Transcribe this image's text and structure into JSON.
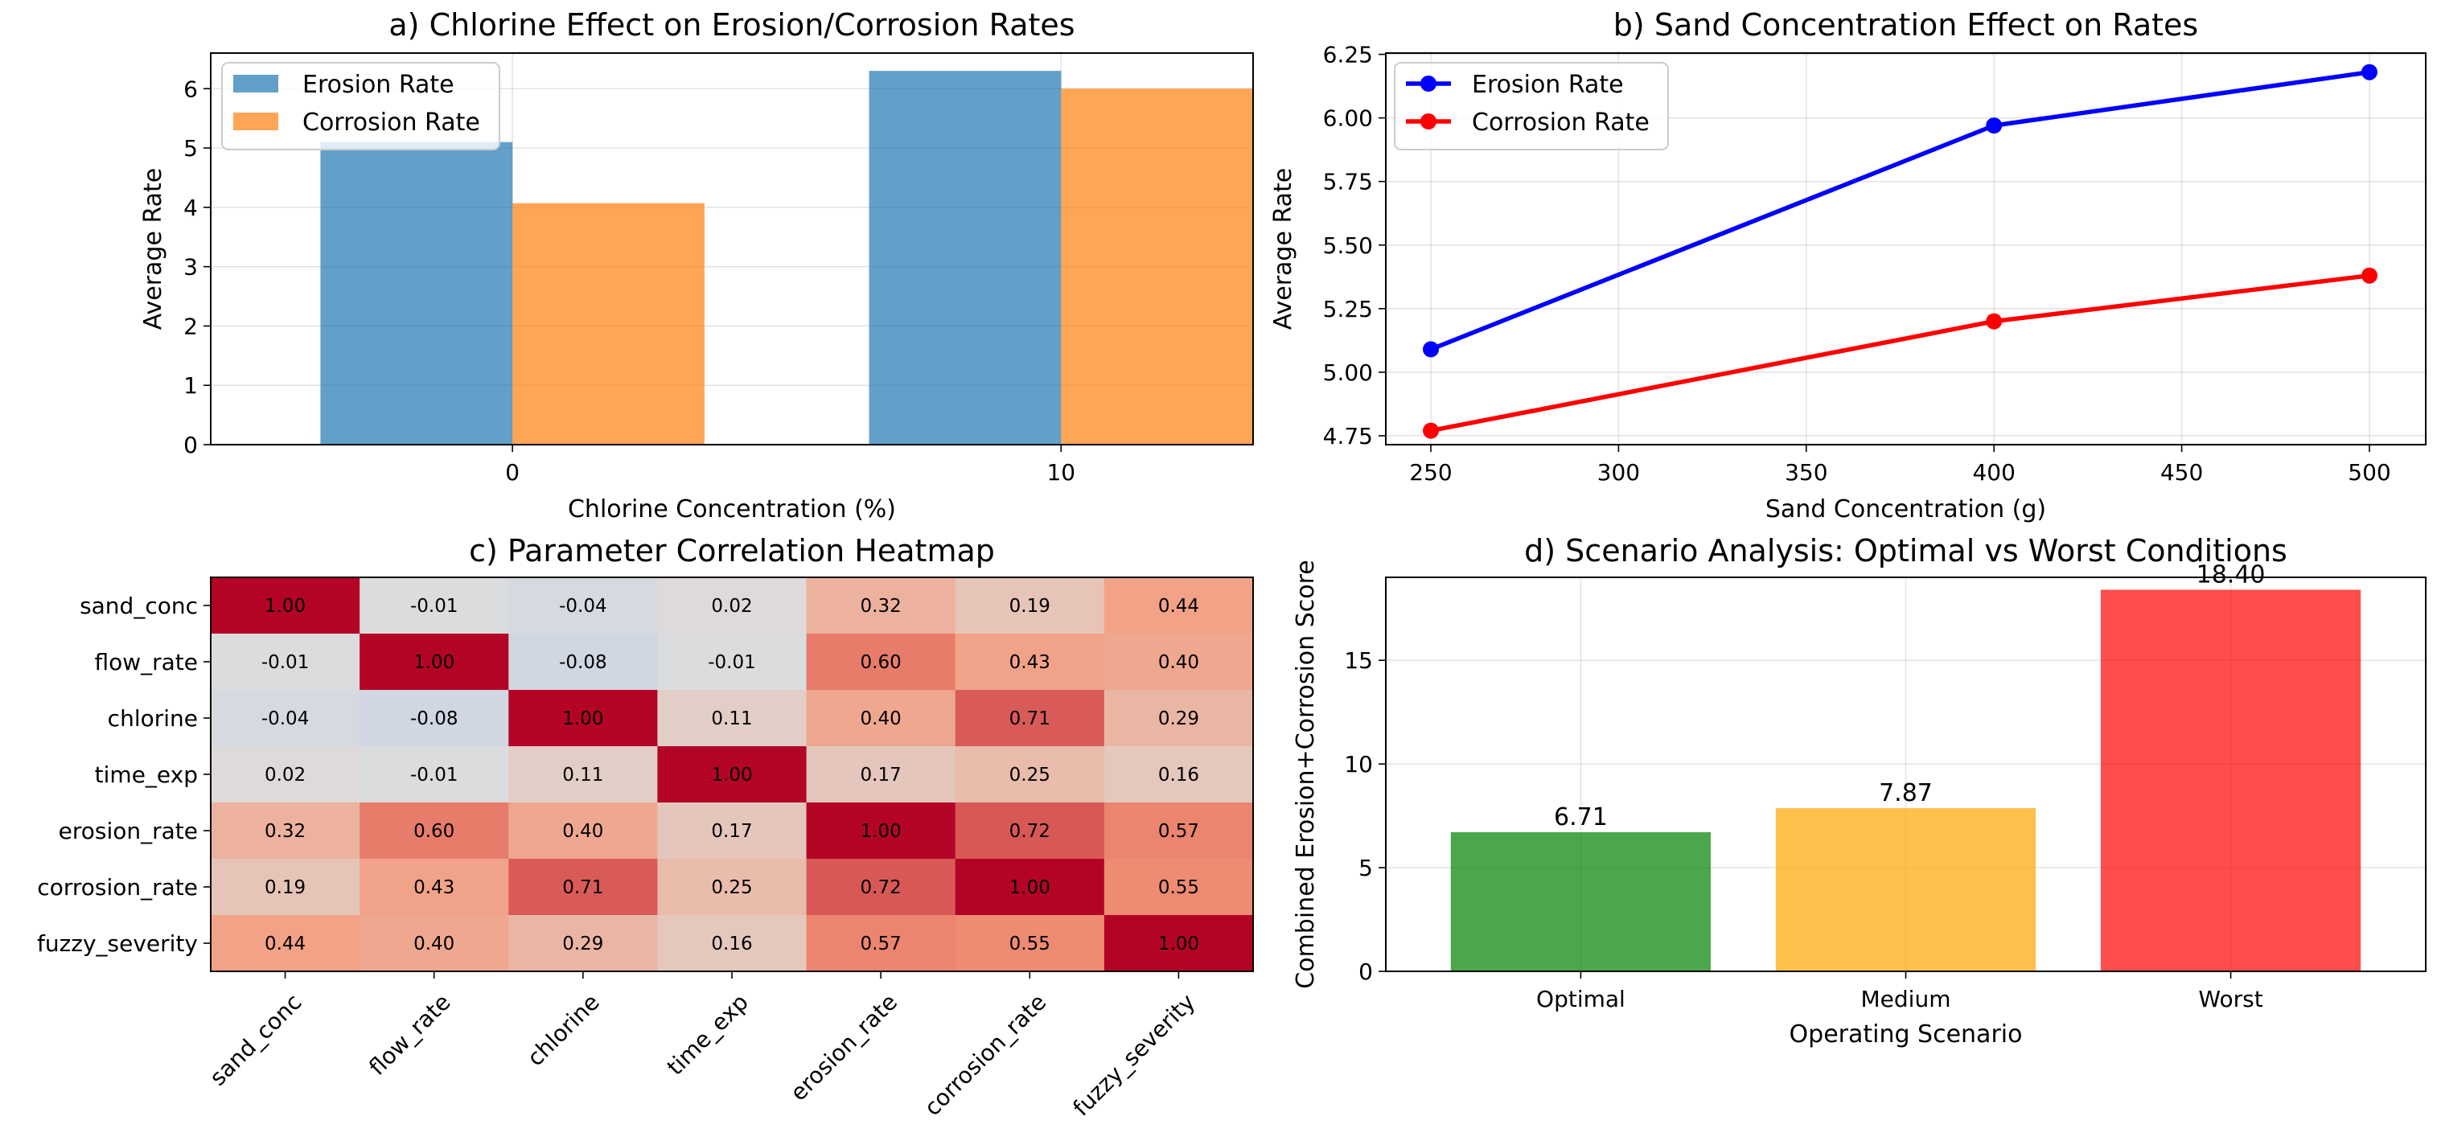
{
  "colors": {
    "erosion_bar": "#1f77b4",
    "corrosion_bar": "#ff7f0e",
    "erosion_line": "#0000ff",
    "corrosion_line": "#ff0000",
    "optimal": "#008000",
    "medium": "#ffa500",
    "worst": "#ff0000"
  },
  "chart_data": [
    {
      "panel": "a",
      "type": "bar",
      "title": "a) Chlorine Effect on Erosion/Corrosion Rates",
      "xlabel": "Chlorine Concentration (%)",
      "ylabel": "Average Rate",
      "categories": [
        "0",
        "10"
      ],
      "series": [
        {
          "name": "Erosion Rate",
          "values": [
            5.1,
            6.3
          ]
        },
        {
          "name": "Corrosion Rate",
          "values": [
            4.07,
            6.0
          ]
        }
      ],
      "ylim": [
        0,
        6.6
      ],
      "yticks": [
        0,
        1,
        2,
        3,
        4,
        5,
        6
      ],
      "grid": true,
      "legend": "top-left"
    },
    {
      "panel": "b",
      "type": "line",
      "title": "b) Sand Concentration Effect on Rates",
      "xlabel": "Sand Concentration (g)",
      "ylabel": "Average Rate",
      "x": [
        250,
        400,
        500
      ],
      "series": [
        {
          "name": "Erosion Rate",
          "values": [
            5.09,
            5.97,
            6.18
          ]
        },
        {
          "name": "Corrosion Rate",
          "values": [
            4.77,
            5.2,
            5.38
          ]
        }
      ],
      "xlim": [
        238,
        515
      ],
      "ylim": [
        4.715,
        6.255
      ],
      "xticks": [
        250,
        300,
        350,
        400,
        450,
        500
      ],
      "yticks": [
        "4.75",
        "5.00",
        "5.25",
        "5.50",
        "5.75",
        "6.00",
        "6.25"
      ],
      "grid": true,
      "legend": "top-left"
    },
    {
      "panel": "c",
      "type": "heatmap",
      "title": "c) Parameter Correlation Heatmap",
      "labels": [
        "sand_conc",
        "flow_rate",
        "chlorine",
        "time_exp",
        "erosion_rate",
        "corrosion_rate",
        "fuzzy_severity"
      ],
      "values": [
        [
          1.0,
          -0.01,
          -0.04,
          0.02,
          0.32,
          0.19,
          0.44
        ],
        [
          -0.01,
          1.0,
          -0.08,
          -0.01,
          0.6,
          0.43,
          0.4
        ],
        [
          -0.04,
          -0.08,
          1.0,
          0.11,
          0.4,
          0.71,
          0.29
        ],
        [
          0.02,
          -0.01,
          0.11,
          1.0,
          0.17,
          0.25,
          0.16
        ],
        [
          0.32,
          0.6,
          0.4,
          0.17,
          1.0,
          0.72,
          0.57
        ],
        [
          0.19,
          0.43,
          0.71,
          0.25,
          0.72,
          1.0,
          0.55
        ],
        [
          0.44,
          0.4,
          0.29,
          0.16,
          0.57,
          0.55,
          1.0
        ]
      ],
      "colormap": "coolwarm",
      "vmin": -1,
      "vmax": 1
    },
    {
      "panel": "d",
      "type": "bar",
      "title": "d) Scenario Analysis: Optimal vs Worst Conditions",
      "xlabel": "Operating Scenario",
      "ylabel": "Combined Erosion+Corrosion Score",
      "categories": [
        "Optimal",
        "Medium",
        "Worst"
      ],
      "values": [
        6.71,
        7.87,
        18.4
      ],
      "value_labels": [
        "6.71",
        "7.87",
        "18.40"
      ],
      "ylim": [
        0,
        19.0
      ],
      "yticks": [
        0,
        5,
        10,
        15
      ],
      "grid": true
    }
  ]
}
